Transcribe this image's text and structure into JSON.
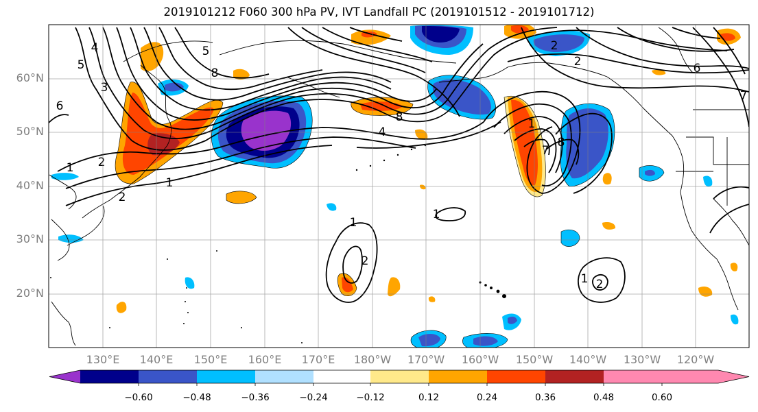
{
  "title": "2019101212 F060 300 hPa PV, IVT Landfall PC (2019101512 - 2019101712)",
  "lat_labels": [
    "60°N",
    "50°N",
    "40°N",
    "30°N",
    "20°N"
  ],
  "lon_labels": [
    "130°E",
    "140°E",
    "150°E",
    "160°E",
    "170°E",
    "180°W",
    "170°W",
    "160°W",
    "150°W",
    "140°W",
    "130°W",
    "120°W"
  ],
  "colorbar": {
    "ticks": [
      "−0.60",
      "−0.48",
      "−0.36",
      "−0.24",
      "−0.12",
      "0.12",
      "0.24",
      "0.36",
      "0.48",
      "0.60"
    ],
    "colors": [
      "#9933cc",
      "#00008b",
      "#3a55c8",
      "#00bfff",
      "#b0e0ff",
      "#ffffff",
      "#ffe98a",
      "#ffa500",
      "#ff4500",
      "#b22222",
      "#ff88b0"
    ]
  },
  "contour_labels": [
    "5",
    "8",
    "3",
    "6",
    "4",
    "2",
    "1",
    "2",
    "8",
    "4",
    "2",
    "6",
    "7",
    "1",
    "8",
    "7",
    "2",
    "1",
    "1",
    "2",
    "1",
    "2",
    "5",
    "1"
  ]
}
